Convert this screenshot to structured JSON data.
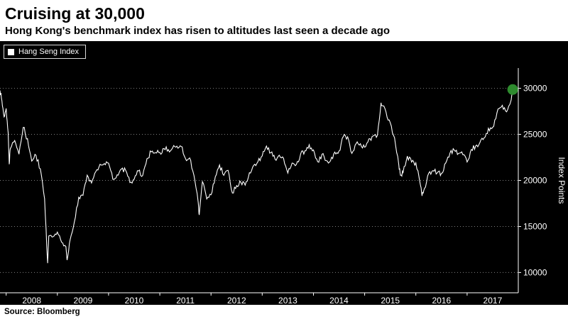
{
  "header": {
    "title": "Cruising at 30,000",
    "subtitle": "Hong Kong's benchmark index has risen to altitudes last seen a decade ago"
  },
  "footer": {
    "source": "Source: Bloomberg"
  },
  "chart_data": {
    "type": "line",
    "title": "Cruising at 30,000",
    "subtitle": "Hong Kong's benchmark index has risen to altitudes last seen a decade ago",
    "xlabel": "",
    "ylabel": "Index Points",
    "legend": {
      "position": "top-left",
      "entries": [
        "Hang Seng Index"
      ]
    },
    "grid": "dotted-horizontal",
    "xlim": [
      2007.88,
      2018.0
    ],
    "ylim": [
      7800,
      32200
    ],
    "yticks": [
      10000,
      15000,
      20000,
      25000,
      30000
    ],
    "xticks": [
      2008,
      2009,
      2010,
      2011,
      2012,
      2013,
      2014,
      2015,
      2016,
      2017
    ],
    "xtick_labels": [
      "2008",
      "2009",
      "2010",
      "2011",
      "2012",
      "2013",
      "2014",
      "2015",
      "2016",
      "2017"
    ],
    "colors": {
      "background": "#000000",
      "line": "#ffffff",
      "text": "#ffffff",
      "endpoint_marker": "#2e8b2e"
    },
    "endpoint": {
      "t": 2017.89,
      "value": 29866
    },
    "series": [
      {
        "name": "Hang Seng Index",
        "points": [
          [
            2007.88,
            29770
          ],
          [
            2007.917,
            28643
          ],
          [
            2007.96,
            26900
          ],
          [
            2008.0,
            27813
          ],
          [
            2008.04,
            25200
          ],
          [
            2008.06,
            21757
          ],
          [
            2008.083,
            23455
          ],
          [
            2008.167,
            24332
          ],
          [
            2008.25,
            22849
          ],
          [
            2008.333,
            25755
          ],
          [
            2008.417,
            24533
          ],
          [
            2008.5,
            22102
          ],
          [
            2008.583,
            22731
          ],
          [
            2008.667,
            21262
          ],
          [
            2008.75,
            18016
          ],
          [
            2008.81,
            11015
          ],
          [
            2008.833,
            13968
          ],
          [
            2008.917,
            13888
          ],
          [
            2009.0,
            14387
          ],
          [
            2009.083,
            13278
          ],
          [
            2009.167,
            12812
          ],
          [
            2009.19,
            11345
          ],
          [
            2009.25,
            13576
          ],
          [
            2009.333,
            15521
          ],
          [
            2009.417,
            18171
          ],
          [
            2009.5,
            18378
          ],
          [
            2009.583,
            20573
          ],
          [
            2009.667,
            19724
          ],
          [
            2009.75,
            20955
          ],
          [
            2009.833,
            21753
          ],
          [
            2009.917,
            21821
          ],
          [
            2010.0,
            21873
          ],
          [
            2010.083,
            20122
          ],
          [
            2010.167,
            20609
          ],
          [
            2010.25,
            21239
          ],
          [
            2010.333,
            21109
          ],
          [
            2010.417,
            19765
          ],
          [
            2010.5,
            20129
          ],
          [
            2010.583,
            21030
          ],
          [
            2010.667,
            20537
          ],
          [
            2010.75,
            22358
          ],
          [
            2010.833,
            23096
          ],
          [
            2010.917,
            23007
          ],
          [
            2011.0,
            23035
          ],
          [
            2011.083,
            23447
          ],
          [
            2011.167,
            23338
          ],
          [
            2011.25,
            23528
          ],
          [
            2011.333,
            23721
          ],
          [
            2011.417,
            23684
          ],
          [
            2011.5,
            22398
          ],
          [
            2011.583,
            22440
          ],
          [
            2011.667,
            20535
          ],
          [
            2011.75,
            17592
          ],
          [
            2011.77,
            16250
          ],
          [
            2011.833,
            19865
          ],
          [
            2011.917,
            17989
          ],
          [
            2012.0,
            18434
          ],
          [
            2012.083,
            20390
          ],
          [
            2012.167,
            21680
          ],
          [
            2012.25,
            20556
          ],
          [
            2012.333,
            21094
          ],
          [
            2012.417,
            18629
          ],
          [
            2012.5,
            19441
          ],
          [
            2012.583,
            19796
          ],
          [
            2012.667,
            19483
          ],
          [
            2012.75,
            20840
          ],
          [
            2012.833,
            21641
          ],
          [
            2012.917,
            22030
          ],
          [
            2013.0,
            22657
          ],
          [
            2013.083,
            23730
          ],
          [
            2013.167,
            23020
          ],
          [
            2013.25,
            22300
          ],
          [
            2013.333,
            22737
          ],
          [
            2013.417,
            22392
          ],
          [
            2013.5,
            20803
          ],
          [
            2013.583,
            21883
          ],
          [
            2013.667,
            21731
          ],
          [
            2013.75,
            22860
          ],
          [
            2013.833,
            23206
          ],
          [
            2013.917,
            23881
          ],
          [
            2014.0,
            23306
          ],
          [
            2014.083,
            22035
          ],
          [
            2014.167,
            22837
          ],
          [
            2014.25,
            22151
          ],
          [
            2014.333,
            22134
          ],
          [
            2014.417,
            23082
          ],
          [
            2014.5,
            23191
          ],
          [
            2014.583,
            24757
          ],
          [
            2014.667,
            24742
          ],
          [
            2014.75,
            22933
          ],
          [
            2014.833,
            23998
          ],
          [
            2014.917,
            23987
          ],
          [
            2015.0,
            23605
          ],
          [
            2015.083,
            24507
          ],
          [
            2015.167,
            24823
          ],
          [
            2015.25,
            24901
          ],
          [
            2015.32,
            28433
          ],
          [
            2015.333,
            28133
          ],
          [
            2015.417,
            27424
          ],
          [
            2015.5,
            26250
          ],
          [
            2015.583,
            24636
          ],
          [
            2015.667,
            21671
          ],
          [
            2015.7,
            20556
          ],
          [
            2015.75,
            20846
          ],
          [
            2015.833,
            22640
          ],
          [
            2015.917,
            21996
          ],
          [
            2016.0,
            21914
          ],
          [
            2016.083,
            19683
          ],
          [
            2016.12,
            18320
          ],
          [
            2016.167,
            19112
          ],
          [
            2016.25,
            20777
          ],
          [
            2016.333,
            21067
          ],
          [
            2016.417,
            20815
          ],
          [
            2016.5,
            20794
          ],
          [
            2016.583,
            21891
          ],
          [
            2016.667,
            22977
          ],
          [
            2016.75,
            23297
          ],
          [
            2016.833,
            22935
          ],
          [
            2016.917,
            22790
          ],
          [
            2017.0,
            22001
          ],
          [
            2017.083,
            23361
          ],
          [
            2017.167,
            23741
          ],
          [
            2017.25,
            24112
          ],
          [
            2017.333,
            24615
          ],
          [
            2017.417,
            25661
          ],
          [
            2017.5,
            25765
          ],
          [
            2017.583,
            27324
          ],
          [
            2017.667,
            27970
          ],
          [
            2017.75,
            27554
          ],
          [
            2017.833,
            28246
          ],
          [
            2017.89,
            29866
          ]
        ]
      }
    ]
  }
}
